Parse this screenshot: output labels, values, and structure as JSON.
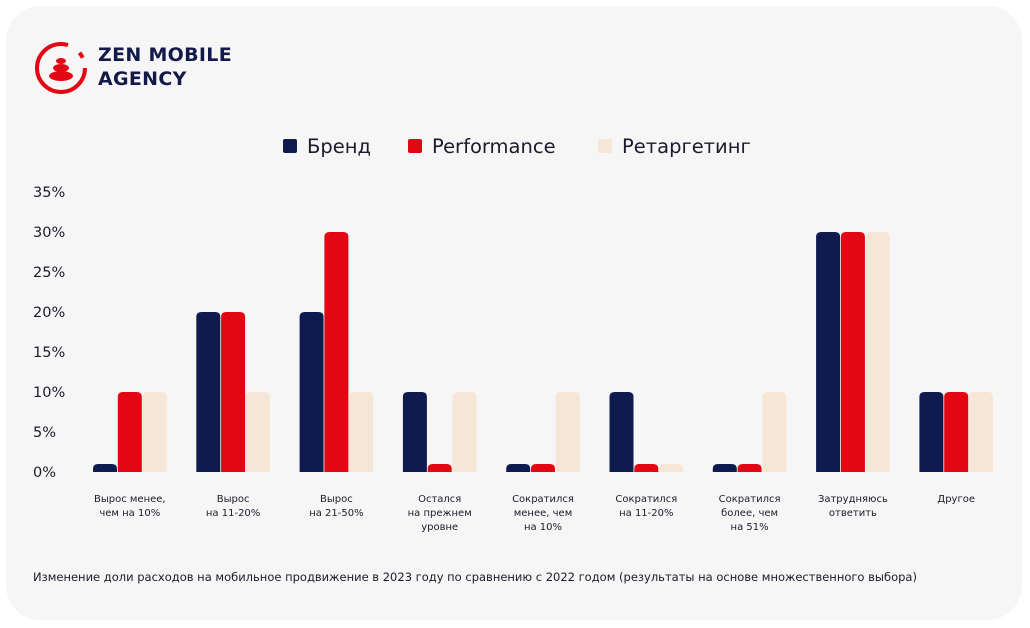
{
  "brand": {
    "line1": "ZEN MOBILE",
    "line2": "AGENCY"
  },
  "colors": {
    "brand_blue": "#0f1a4f",
    "brand_red": "#e30613",
    "retarget": "#f5e6d6",
    "text": "#1b1b2b",
    "background": "#f6f6f6"
  },
  "caption": "Изменение доли расходов на мобильное продвижение в 2023 году по сравнению с 2022 годом (результаты на основе множественного выбора)",
  "chart_data": {
    "type": "bar",
    "legend_position": "top-center",
    "grid": false,
    "ylim": [
      0,
      35
    ],
    "yticks": [
      "0%",
      "5%",
      "10%",
      "15%",
      "20%",
      "25%",
      "30%",
      "35%"
    ],
    "categories": [
      [
        "Вырос менее,",
        "чем на 10%"
      ],
      [
        "Вырос",
        "на 11-20%"
      ],
      [
        "Вырос",
        "на 21-50%"
      ],
      [
        "Остался",
        "на прежнем",
        "уровне"
      ],
      [
        "Сократился",
        "менее, чем",
        "на 10%"
      ],
      [
        "Сократился",
        "на 11-20%"
      ],
      [
        "Сократился",
        "более, чем",
        "на 51%"
      ],
      [
        "Затрудняюсь",
        "ответить"
      ],
      [
        "Другое"
      ]
    ],
    "series": [
      {
        "name": "Бренд",
        "color": "#0f1a4f",
        "values": [
          1,
          20,
          20,
          10,
          1,
          10,
          1,
          30,
          10
        ]
      },
      {
        "name": "Performance",
        "color": "#e30613",
        "values": [
          10,
          20,
          30,
          1,
          1,
          1,
          1,
          30,
          10
        ]
      },
      {
        "name": "Ретаргетинг",
        "color": "#f5e6d6",
        "values": [
          10,
          10,
          10,
          10,
          10,
          1,
          10,
          30,
          10
        ]
      }
    ]
  }
}
